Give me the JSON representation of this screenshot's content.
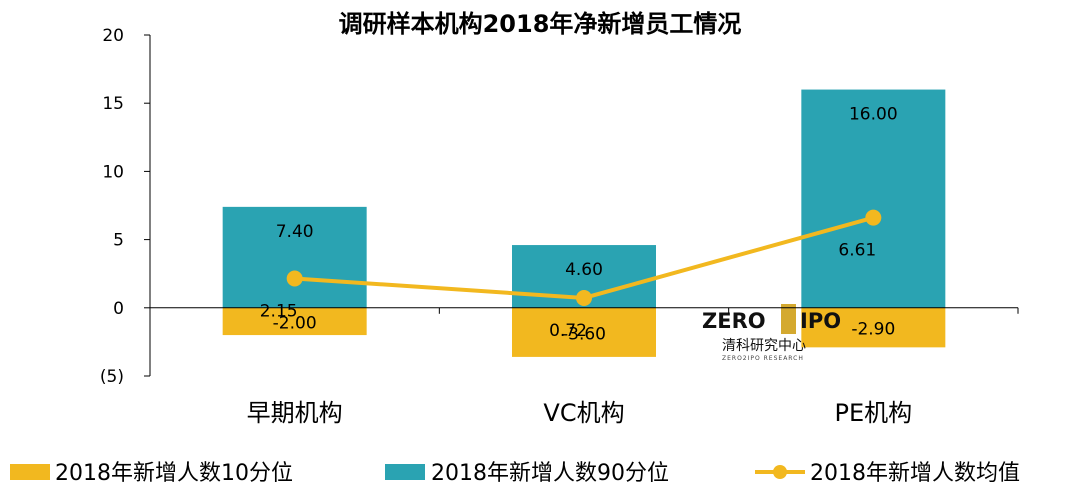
{
  "chart_data": {
    "type": "bar",
    "title": "调研样本机构2018年净新增员工情况",
    "categories": [
      "早期机构",
      "VC机构",
      "PE机构"
    ],
    "series": [
      {
        "name": "2018年新增人数10分位",
        "kind": "bar",
        "values": [
          -2.0,
          -3.6,
          -2.9
        ],
        "labels": [
          "-2.00",
          "-3.60",
          "-2.90"
        ],
        "color": "#F2B81F"
      },
      {
        "name": "2018年新增人数90分位",
        "kind": "bar",
        "values": [
          7.4,
          4.6,
          16.0
        ],
        "labels": [
          "7.40",
          "4.60",
          "16.00"
        ],
        "color": "#2AA3B2"
      },
      {
        "name": "2018年新增人数均值",
        "kind": "line",
        "values": [
          2.15,
          0.72,
          6.61
        ],
        "labels": [
          "2.15",
          "0.72",
          "6.61"
        ],
        "color": "#F2B81F"
      }
    ],
    "ylim": [
      -5,
      20
    ],
    "yticks": [
      20,
      15,
      10,
      5,
      0,
      -5
    ],
    "ytick_labels": [
      "20",
      "15",
      "10",
      "5",
      "0",
      "(5)"
    ],
    "negative_tick_color": "#C00000",
    "grid": false,
    "legend": "bottom"
  },
  "watermark": {
    "brand_left": "ZERO",
    "brand_right": "IPO",
    "chinese": "清科研究中心",
    "english": "ZERO2IPO RESEARCH"
  }
}
